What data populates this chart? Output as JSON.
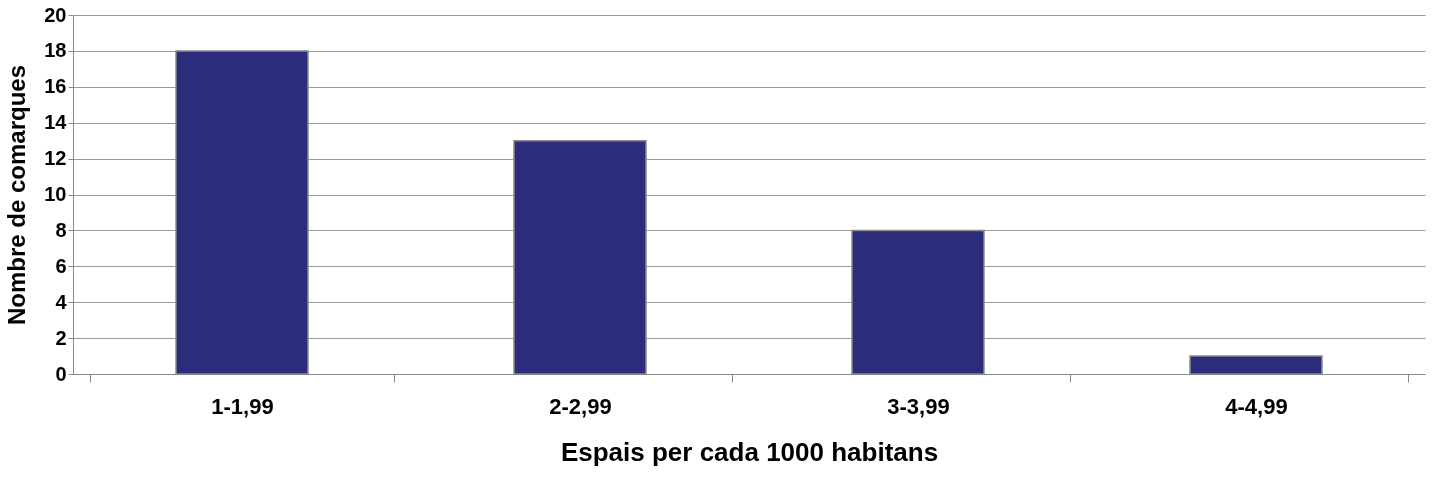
{
  "chart_data": {
    "type": "bar",
    "xlabel": "Espais per cada 1000 habitans",
    "ylabel": "Nombre de comarques",
    "categories": [
      "1-1,99",
      "2-2,99",
      "3-3,99",
      "4-4,99"
    ],
    "values": [
      18,
      13,
      8,
      1
    ],
    "color": "#2b2d7c",
    "ylim": [
      0,
      20
    ],
    "yticks": [
      0,
      2,
      4,
      6,
      8,
      10,
      12,
      14,
      16,
      18,
      20
    ],
    "grid": "y"
  }
}
